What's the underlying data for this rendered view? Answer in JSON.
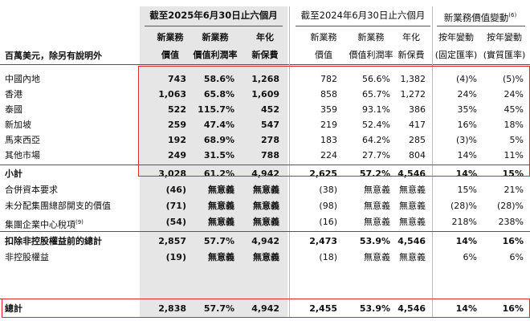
{
  "header": {
    "group_2025": "截至2025年6月30日止六個月",
    "group_2024": "截至2024年6月30日止六個月",
    "group_change": "新業務價值變動",
    "group_change_note": "(6)",
    "unit_label": "百萬美元，除另有說明外",
    "cols_2025": [
      {
        "line1": "新業務",
        "line2": "價值"
      },
      {
        "line1": "新業務",
        "line2": "價值利潤率"
      },
      {
        "line1": "年化",
        "line2": "新保費"
      }
    ],
    "cols_2024": [
      {
        "line1": "新業務",
        "line2": "價值"
      },
      {
        "line1": "新業務",
        "line2": "價值利潤率"
      },
      {
        "line1": "年化",
        "line2": "新保費"
      }
    ],
    "cols_change": [
      {
        "line1": "按年變動",
        "line2": "(固定匯率)"
      },
      {
        "line1": "按年變動",
        "line2": "(實質匯率)"
      }
    ]
  },
  "rows": [
    {
      "label": "中國內地",
      "bold": false,
      "v": [
        "743",
        "58.6%",
        "1,268",
        "782",
        "56.6%",
        "1,382",
        "(4)%",
        "(5)%"
      ]
    },
    {
      "label": "香港",
      "bold": false,
      "v": [
        "1,063",
        "65.8%",
        "1,609",
        "858",
        "65.7%",
        "1,272",
        "24%",
        "24%"
      ]
    },
    {
      "label": "泰國",
      "bold": false,
      "v": [
        "522",
        "115.7%",
        "452",
        "359",
        "93.1%",
        "386",
        "35%",
        "45%"
      ]
    },
    {
      "label": "新加坡",
      "bold": false,
      "v": [
        "259",
        "47.4%",
        "547",
        "219",
        "52.4%",
        "417",
        "16%",
        "18%"
      ]
    },
    {
      "label": "馬來西亞",
      "bold": false,
      "v": [
        "192",
        "68.9%",
        "278",
        "183",
        "64.2%",
        "285",
        "(3)%",
        "5%"
      ]
    },
    {
      "label": "其他市場",
      "bold": false,
      "v": [
        "249",
        "31.5%",
        "788",
        "224",
        "27.7%",
        "804",
        "14%",
        "11%"
      ]
    },
    {
      "label": "小計",
      "bold": true,
      "v": [
        "3,028",
        "61.2%",
        "4,942",
        "2,625",
        "57.2%",
        "4,546",
        "14%",
        "15%"
      ]
    },
    {
      "label": "合併資本要求",
      "bold": false,
      "v": [
        "(46)",
        "無意義",
        "無意義",
        "(38)",
        "無意義",
        "無意義",
        "15%",
        "21%"
      ]
    },
    {
      "label": "未分配集團總部開支的價值",
      "bold": false,
      "v": [
        "(71)",
        "無意義",
        "無意義",
        "(98)",
        "無意義",
        "無意義",
        "(28)%",
        "(28)%"
      ]
    },
    {
      "label": "集團企業中心稅項",
      "note": "(9)",
      "bold": false,
      "v": [
        "(54)",
        "無意義",
        "無意義",
        "(16)",
        "無意義",
        "無意義",
        "218%",
        "238%"
      ]
    },
    {
      "label": "扣除非控股權益前的總計",
      "bold": true,
      "v": [
        "2,857",
        "57.7%",
        "4,942",
        "2,473",
        "53.9%",
        "4,546",
        "14%",
        "16%"
      ]
    },
    {
      "label": "非控股權益",
      "bold": false,
      "v": [
        "(19)",
        "無意義",
        "無意義",
        "(18)",
        "無意義",
        "無意義",
        "6%",
        "6%"
      ]
    },
    {
      "label": "總計",
      "bold": true,
      "v": [
        "2,838",
        "57.7%",
        "4,942",
        "2,455",
        "53.9%",
        "4,546",
        "14%",
        "16%"
      ]
    }
  ]
}
